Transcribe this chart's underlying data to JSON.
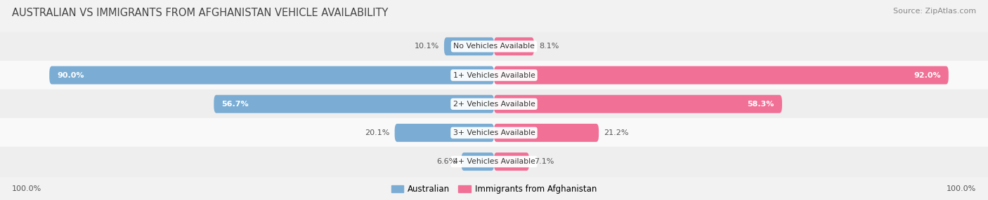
{
  "title": "AUSTRALIAN VS IMMIGRANTS FROM AFGHANISTAN VEHICLE AVAILABILITY",
  "source": "Source: ZipAtlas.com",
  "categories": [
    "No Vehicles Available",
    "1+ Vehicles Available",
    "2+ Vehicles Available",
    "3+ Vehicles Available",
    "4+ Vehicles Available"
  ],
  "australian_values": [
    10.1,
    90.0,
    56.7,
    20.1,
    6.6
  ],
  "immigrant_values": [
    8.1,
    92.0,
    58.3,
    21.2,
    7.1
  ],
  "australian_color": "#7BADD4",
  "immigrant_color": "#F07096",
  "australian_label": "Australian",
  "immigrant_label": "Immigrants from Afghanistan",
  "bar_height": 0.62,
  "row_colors": [
    "#eeeeee",
    "#f9f9f9"
  ],
  "fig_bg": "#f2f2f2",
  "title_color": "#444444",
  "source_color": "#888888",
  "footer_label": "100.0%"
}
